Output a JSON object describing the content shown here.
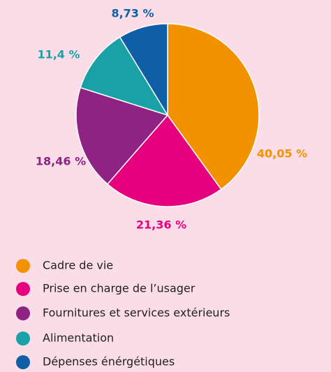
{
  "chart_data": {
    "type": "pie",
    "categories": [
      "Cadre de vie",
      "Prise en charge de l’usager",
      "Fournitures et services extérieurs",
      "Alimentation",
      "Dépenses énérgétiques"
    ],
    "values": [
      40.05,
      21.36,
      18.46,
      11.4,
      8.73
    ],
    "value_labels": [
      "40,05 %",
      "21,36 %",
      "18,46 %",
      "11,4 %",
      "8,73 %"
    ],
    "colors": [
      "#f39200",
      "#e6007e",
      "#8e2383",
      "#1aa1a8",
      "#0f5fa6"
    ],
    "legend": "bottom"
  }
}
